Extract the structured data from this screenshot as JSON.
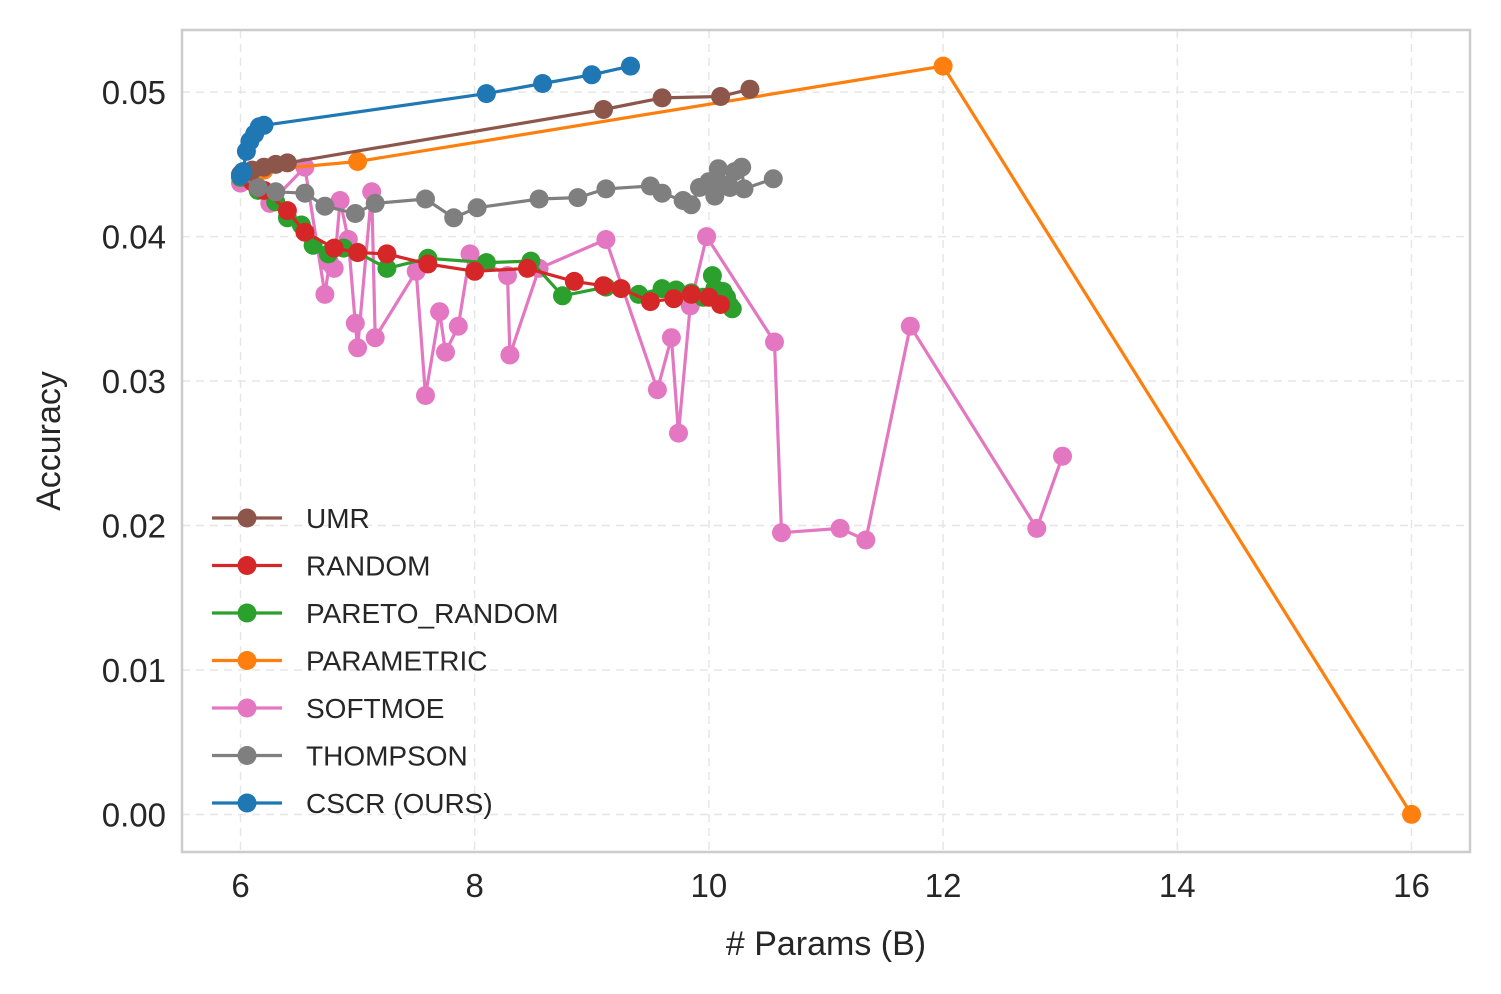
{
  "chart_data": {
    "type": "line",
    "title": "",
    "xlabel": "# Params (B)",
    "ylabel": "Accuracy",
    "xlim": [
      5.5,
      16.5
    ],
    "ylim": [
      -0.0026,
      0.0543
    ],
    "xticks": [
      6,
      8,
      10,
      12,
      14,
      16
    ],
    "xtick_labels": [
      "6",
      "8",
      "10",
      "12",
      "14",
      "16"
    ],
    "yticks": [
      0.0,
      0.01,
      0.02,
      0.03,
      0.04,
      0.05
    ],
    "ytick_labels": [
      "0.00",
      "0.01",
      "0.02",
      "0.03",
      "0.04",
      "0.05"
    ],
    "grid": true,
    "legend_position": "lower-left",
    "series": [
      {
        "name": "UMR",
        "color": "#8c564b",
        "x": [
          6.0,
          6.1,
          6.2,
          6.3,
          6.4,
          9.1,
          9.6,
          10.1,
          10.35
        ],
        "y": [
          0.0443,
          0.0446,
          0.0448,
          0.045,
          0.0451,
          0.0488,
          0.0496,
          0.0497,
          0.0502
        ]
      },
      {
        "name": "RANDOM",
        "color": "#d62728",
        "x": [
          6.0,
          6.1,
          6.2,
          6.4,
          6.55,
          6.8,
          7.0,
          7.25,
          7.6,
          8.0,
          8.45,
          8.85,
          9.1,
          9.25,
          9.5,
          9.7,
          9.85,
          10.0,
          10.1
        ],
        "y": [
          0.0442,
          0.0438,
          0.0432,
          0.0418,
          0.0403,
          0.0392,
          0.0389,
          0.0388,
          0.0381,
          0.0376,
          0.0378,
          0.0369,
          0.0366,
          0.0364,
          0.0355,
          0.0357,
          0.036,
          0.0358,
          0.0353
        ]
      },
      {
        "name": "PARETO_RANDOM",
        "color": "#2ca02c",
        "x": [
          6.0,
          6.15,
          6.3,
          6.4,
          6.52,
          6.62,
          6.75,
          6.88,
          7.0,
          7.25,
          7.6,
          8.1,
          8.48,
          8.75,
          9.12,
          9.4,
          9.6,
          9.72,
          9.85,
          9.95,
          10.03,
          10.05,
          10.1,
          10.12,
          10.15,
          10.18,
          10.2
        ],
        "y": [
          0.0441,
          0.0432,
          0.0424,
          0.0413,
          0.0408,
          0.0394,
          0.0388,
          0.0392,
          0.0389,
          0.0378,
          0.0385,
          0.0382,
          0.0383,
          0.0359,
          0.0365,
          0.036,
          0.0364,
          0.0363,
          0.0361,
          0.0358,
          0.0373,
          0.0364,
          0.0355,
          0.0362,
          0.0358,
          0.0352,
          0.035
        ]
      },
      {
        "name": "PARAMETRIC",
        "color": "#ff7f0e",
        "x": [
          6.0,
          6.2,
          7.0,
          12.0,
          16.0
        ],
        "y": [
          0.0443,
          0.0446,
          0.0452,
          0.0518,
          0.0
        ]
      },
      {
        "name": "SOFTMOE",
        "color": "#e377c2",
        "x": [
          6.0,
          6.12,
          6.25,
          6.55,
          6.72,
          6.76,
          6.8,
          6.85,
          6.92,
          6.98,
          7.0,
          7.12,
          7.15,
          7.5,
          7.58,
          7.7,
          7.75,
          7.86,
          7.96,
          8.28,
          8.3,
          8.55,
          9.12,
          9.56,
          9.68,
          9.74,
          9.84,
          9.98,
          10.56,
          10.62,
          11.12,
          11.34,
          11.72,
          12.8,
          13.02
        ],
        "y": [
          0.0437,
          0.0442,
          0.0423,
          0.0448,
          0.036,
          0.0382,
          0.0378,
          0.0425,
          0.0398,
          0.034,
          0.0323,
          0.0431,
          0.033,
          0.0376,
          0.029,
          0.0348,
          0.032,
          0.0338,
          0.0388,
          0.0373,
          0.0318,
          0.0378,
          0.0398,
          0.0294,
          0.033,
          0.0264,
          0.0352,
          0.04,
          0.0327,
          0.0195,
          0.0198,
          0.019,
          0.0338,
          0.0198,
          0.0248
        ]
      },
      {
        "name": "THOMPSON",
        "color": "#7f7f7f",
        "x": [
          6.0,
          6.15,
          6.3,
          6.55,
          6.72,
          6.98,
          7.15,
          7.58,
          7.82,
          8.02,
          8.55,
          8.88,
          9.12,
          9.5,
          9.6,
          9.78,
          9.85,
          9.92,
          10.0,
          10.05,
          10.08,
          10.12,
          10.18,
          10.22,
          10.28,
          10.3,
          10.55
        ],
        "y": [
          0.0442,
          0.0434,
          0.0431,
          0.043,
          0.0421,
          0.0416,
          0.0423,
          0.0426,
          0.0413,
          0.042,
          0.0426,
          0.0427,
          0.0433,
          0.0435,
          0.043,
          0.0425,
          0.0422,
          0.0434,
          0.0438,
          0.0428,
          0.0447,
          0.0436,
          0.0434,
          0.0445,
          0.0448,
          0.0433,
          0.044
        ]
      },
      {
        "name": "CSCR (OURS)",
        "color": "#1f77b4",
        "x": [
          6.0,
          6.02,
          6.05,
          6.08,
          6.12,
          6.16,
          6.2,
          8.1,
          8.58,
          9.0,
          9.33
        ],
        "y": [
          0.0442,
          0.0445,
          0.0459,
          0.0466,
          0.0471,
          0.0476,
          0.0477,
          0.0499,
          0.0506,
          0.0512,
          0.0518
        ]
      }
    ]
  }
}
